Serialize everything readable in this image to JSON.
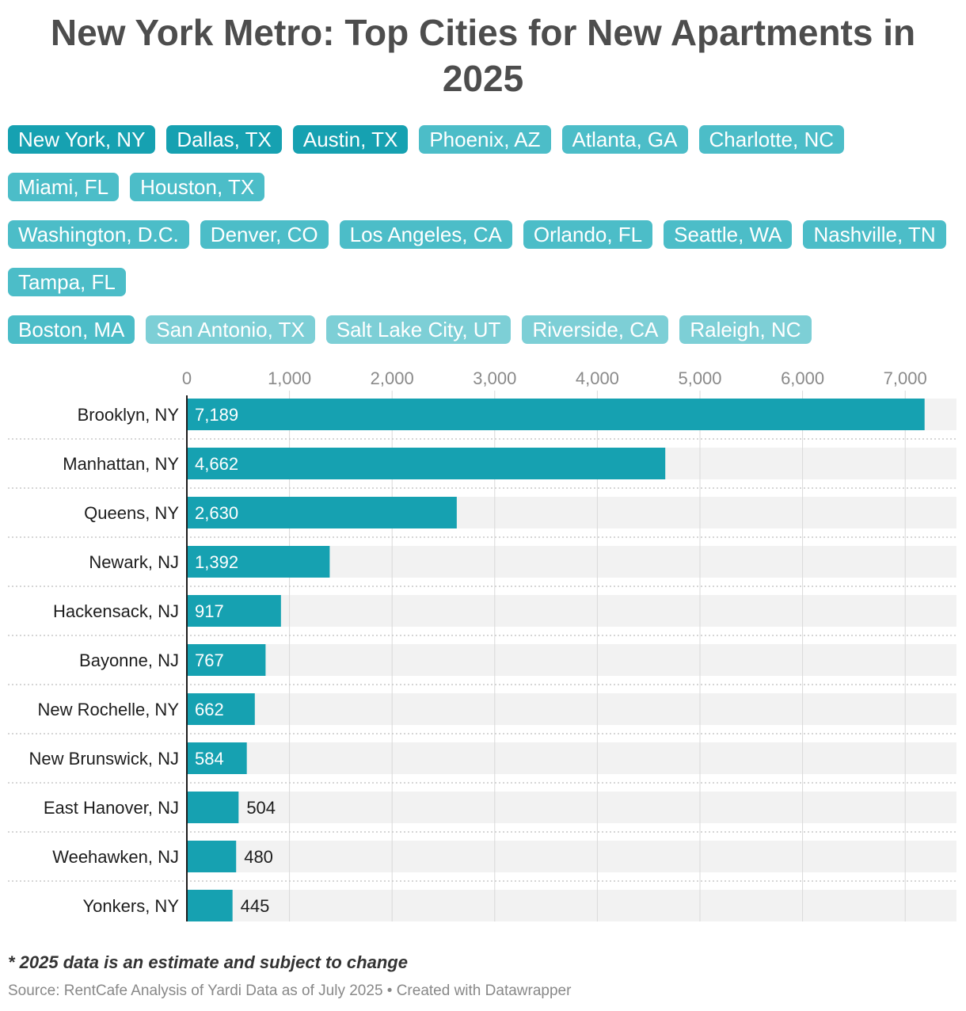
{
  "title": "New York Metro: Top Cities for New Apartments in 2025",
  "buttons": [
    {
      "label": "New York, NY",
      "color": "#16a1b1"
    },
    {
      "label": "Dallas, TX",
      "color": "#16a1b1"
    },
    {
      "label": "Austin, TX",
      "color": "#16a1b1"
    },
    {
      "label": "Phoenix, AZ",
      "color": "#4cbdc8"
    },
    {
      "label": "Atlanta, GA",
      "color": "#4cbdc8"
    },
    {
      "label": "Charlotte, NC",
      "color": "#4cbdc8"
    },
    {
      "label": "Miami, FL",
      "color": "#4cbdc8"
    },
    {
      "label": "Houston, TX",
      "color": "#4cbdc8"
    },
    {
      "label": "Washington, D.C.",
      "color": "#4cbdc8"
    },
    {
      "label": "Denver, CO",
      "color": "#4cbdc8"
    },
    {
      "label": "Los Angeles, CA",
      "color": "#4cbdc8"
    },
    {
      "label": "Orlando, FL",
      "color": "#4cbdc8"
    },
    {
      "label": "Seattle, WA",
      "color": "#4cbdc8"
    },
    {
      "label": "Nashville, TN",
      "color": "#4cbdc8"
    },
    {
      "label": "Tampa, FL",
      "color": "#4cbdc8"
    },
    {
      "label": "Boston, MA",
      "color": "#4cbdc8"
    },
    {
      "label": "San Antonio, TX",
      "color": "#7dcfd6"
    },
    {
      "label": "Salt Lake City, UT",
      "color": "#7dcfd6"
    },
    {
      "label": "Riverside, CA",
      "color": "#7dcfd6"
    },
    {
      "label": "Raleigh, NC",
      "color": "#7dcfd6"
    }
  ],
  "button_rows": [
    [
      0,
      1,
      2,
      3,
      4,
      5,
      6,
      7
    ],
    [
      8,
      9,
      10,
      11,
      12,
      13,
      14
    ],
    [
      15,
      16,
      17,
      18,
      19
    ]
  ],
  "chart_data": {
    "type": "bar",
    "orientation": "horizontal",
    "categories": [
      "Brooklyn, NY",
      "Manhattan, NY",
      "Queens, NY",
      "Newark, NJ",
      "Hackensack, NJ",
      "Bayonne, NJ",
      "New Rochelle, NY",
      "New Brunswick, NJ",
      "East Hanover, NJ",
      "Weehawken, NJ",
      "Yonkers, NY"
    ],
    "values": [
      7189,
      4662,
      2630,
      1392,
      917,
      767,
      662,
      584,
      504,
      480,
      445
    ],
    "value_labels": [
      "7,189",
      "4,662",
      "2,630",
      "1,392",
      "917",
      "767",
      "662",
      "584",
      "504",
      "480",
      "445"
    ],
    "x_ticks": [
      "0",
      "1,000",
      "2,000",
      "3,000",
      "4,000",
      "5,000",
      "6,000",
      "7,000"
    ],
    "xlim": [
      0,
      7500
    ],
    "grid": true,
    "bar_color": "#16a1b1",
    "track_color": "#f2f2f2"
  },
  "footnote": "* 2025 data is an estimate and subject to change",
  "source": "Source: RentCafe Analysis of Yardi Data as of July 2025 • Created with Datawrapper"
}
